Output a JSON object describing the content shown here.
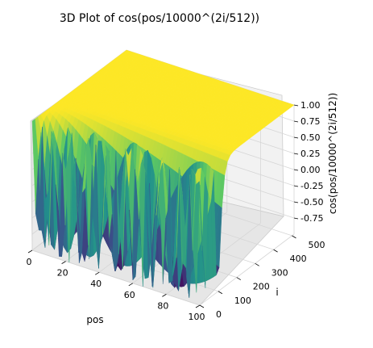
{
  "chart_data": {
    "type": "surface",
    "title": "3D Plot of cos(pos/10000^(2i/512))",
    "xlabel": "pos",
    "ylabel": "i",
    "zlabel": "cos(pos/10000^(2i/512))",
    "formula": "z = cos(pos / 10000^(2*i/512))",
    "x_range": [
      0,
      100
    ],
    "y_range": [
      0,
      511
    ],
    "z_range": [
      -1.0,
      1.0
    ],
    "x_ticks": [
      "0",
      "20",
      "40",
      "60",
      "80",
      "100"
    ],
    "y_ticks": [
      "0",
      "100",
      "200",
      "300",
      "400",
      "500"
    ],
    "z_ticks": [
      "-0.75",
      "-0.50",
      "-0.25",
      "0.00",
      "0.25",
      "0.50",
      "0.75",
      "1.00"
    ],
    "colormap": "viridis",
    "grid": true
  }
}
